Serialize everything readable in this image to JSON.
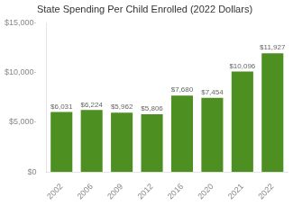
{
  "chart_data": {
    "type": "bar",
    "title": "State Spending Per Child Enrolled (2022 Dollars)",
    "categories": [
      "2002",
      "2006",
      "2009",
      "2012",
      "2016",
      "2020",
      "2021",
      "2022"
    ],
    "values": [
      6031,
      6224,
      5962,
      5806,
      7680,
      7454,
      10096,
      11927
    ],
    "value_labels": [
      "$6,031",
      "$6,224",
      "$5,962",
      "$5,806",
      "$7,680",
      "$7,454",
      "$10,096",
      "$11,927"
    ],
    "data_labels": true,
    "color": "#4e8f22",
    "ylim": [
      0,
      15000
    ],
    "yticks": [
      {
        "value": 0,
        "label": "$0"
      },
      {
        "value": 5000,
        "label": "$5,000·"
      },
      {
        "value": 10000,
        "label": "$10,000·"
      },
      {
        "value": 15000,
        "label": "$15,000·"
      }
    ],
    "grid": false
  }
}
